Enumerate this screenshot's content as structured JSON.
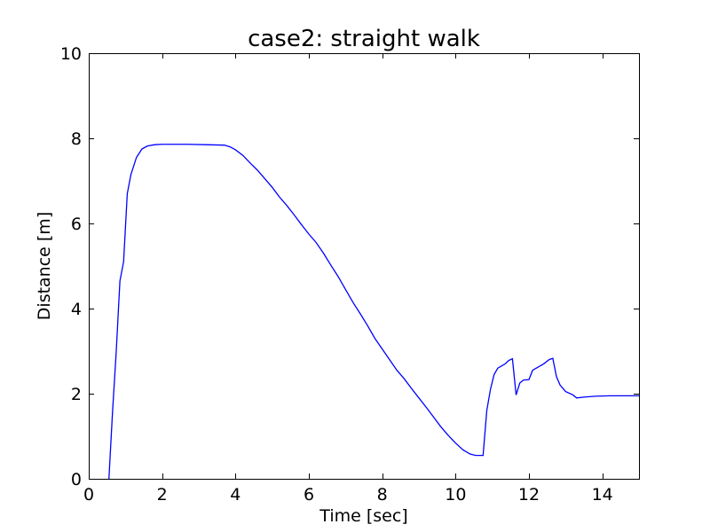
{
  "chart_data": {
    "type": "line",
    "title": "case2: straight walk",
    "xlabel": "Time [sec]",
    "ylabel": "Distance [m]",
    "xlim": [
      0,
      15
    ],
    "ylim": [
      0,
      10
    ],
    "xticks": [
      0,
      2,
      4,
      6,
      8,
      10,
      12,
      14
    ],
    "yticks": [
      0,
      2,
      4,
      6,
      8,
      10
    ],
    "grid": false,
    "line_color": "#0000ff",
    "series": [
      {
        "x": [
          0.55,
          0.65,
          0.75,
          0.85,
          0.95,
          1.05,
          1.15,
          1.3,
          1.45,
          1.6,
          1.8,
          2.0,
          2.3,
          2.7,
          3.2,
          3.7,
          3.85,
          4.0,
          4.2,
          4.4,
          4.6,
          4.8,
          5.0,
          5.2,
          5.4,
          5.6,
          5.8,
          6.0,
          6.2,
          6.4,
          6.6,
          6.8,
          7.0,
          7.2,
          7.4,
          7.6,
          7.8,
          8.0,
          8.2,
          8.4,
          8.6,
          8.8,
          9.0,
          9.2,
          9.4,
          9.6,
          9.8,
          10.0,
          10.2,
          10.4,
          10.55,
          10.75,
          10.85,
          10.95,
          11.05,
          11.15,
          11.25,
          11.35,
          11.45,
          11.55,
          11.65,
          11.75,
          11.85,
          12.0,
          12.1,
          12.2,
          12.4,
          12.55,
          12.65,
          12.75,
          12.85,
          13.0,
          13.2,
          13.3,
          13.5,
          13.8,
          14.2,
          14.6,
          15.0
        ],
        "y": [
          0.0,
          1.6,
          3.0,
          4.65,
          5.1,
          6.7,
          7.15,
          7.55,
          7.75,
          7.82,
          7.85,
          7.86,
          7.86,
          7.86,
          7.85,
          7.84,
          7.8,
          7.73,
          7.6,
          7.42,
          7.25,
          7.05,
          6.85,
          6.62,
          6.42,
          6.2,
          5.97,
          5.75,
          5.55,
          5.3,
          5.02,
          4.75,
          4.45,
          4.15,
          3.88,
          3.6,
          3.3,
          3.05,
          2.8,
          2.55,
          2.35,
          2.12,
          1.9,
          1.68,
          1.45,
          1.22,
          1.02,
          0.84,
          0.68,
          0.58,
          0.55,
          0.55,
          1.6,
          2.1,
          2.45,
          2.6,
          2.65,
          2.7,
          2.78,
          2.82,
          1.97,
          2.25,
          2.32,
          2.33,
          2.55,
          2.6,
          2.7,
          2.8,
          2.83,
          2.4,
          2.2,
          2.05,
          1.97,
          1.9,
          1.92,
          1.94,
          1.95,
          1.95,
          1.95
        ]
      }
    ]
  }
}
